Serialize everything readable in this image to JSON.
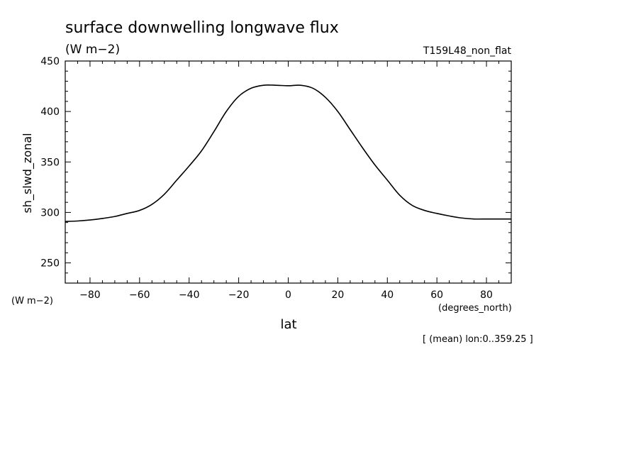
{
  "chart_data": {
    "type": "line",
    "title": "surface downwelling longwave flux",
    "units_label": "(W m−2)",
    "experiment_label": "T159L48_non_flat",
    "ylabel": "sh_slwd_zonal",
    "yunits_label": "(W m−2)",
    "xlabel": "lat",
    "xunits_label": "(degrees_north)",
    "footnote": "[ (mean) lon:0..359.25 ]",
    "xlim": [
      -90,
      90
    ],
    "ylim": [
      230,
      450
    ],
    "x_ticks": [
      -80,
      -60,
      -40,
      -20,
      0,
      20,
      40,
      60,
      80
    ],
    "x_tick_labels": [
      "−80",
      "−60",
      "−40",
      "−20",
      "0",
      "20",
      "40",
      "60",
      "80"
    ],
    "y_ticks": [
      250,
      300,
      350,
      400,
      450
    ],
    "y_tick_labels": [
      "250",
      "300",
      "350",
      "400",
      "450"
    ],
    "grid": false,
    "series": [
      {
        "x": [
          -90,
          -85,
          -80,
          -75,
          -70,
          -65,
          -60,
          -55,
          -50,
          -45,
          -40,
          -35,
          -30,
          -25,
          -20,
          -15,
          -10,
          -5,
          0,
          5,
          10,
          15,
          20,
          25,
          30,
          35,
          40,
          45,
          50,
          55,
          60,
          65,
          70,
          75,
          80,
          85,
          90
        ],
        "y": [
          291,
          291.5,
          292.5,
          294,
          296,
          299,
          302,
          308,
          318,
          332,
          346,
          361,
          380,
          400,
          415,
          423,
          426,
          426,
          425.5,
          426,
          423,
          414,
          400,
          382,
          364,
          347,
          332,
          317,
          307,
          302,
          299,
          296.5,
          294.5,
          293.5,
          293.5,
          293.5,
          293.5
        ]
      }
    ]
  }
}
